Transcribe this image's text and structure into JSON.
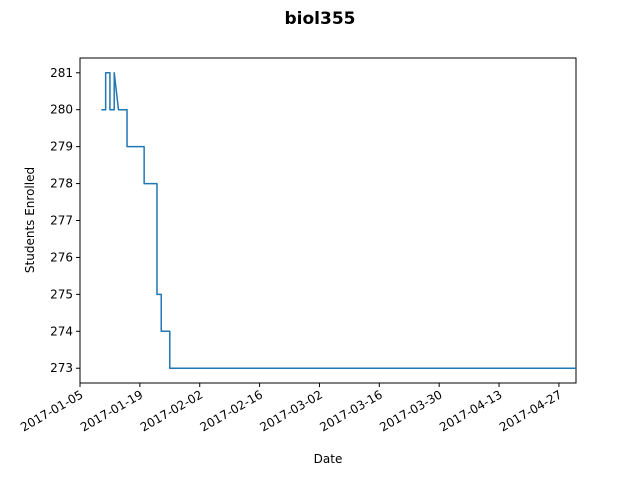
{
  "chart_data": {
    "type": "line",
    "title": "biol355",
    "xlabel": "Date",
    "ylabel": "Students Enrolled",
    "x_tick_labels": [
      "2017-01-05",
      "2017-01-19",
      "2017-02-02",
      "2017-02-16",
      "2017-03-02",
      "2017-03-16",
      "2017-03-30",
      "2017-04-13",
      "2017-04-27"
    ],
    "y_tick_labels": [
      "273",
      "274",
      "275",
      "276",
      "277",
      "278",
      "279",
      "280",
      "281"
    ],
    "xlim": [
      "2017-01-05",
      "2017-05-01"
    ],
    "ylim": [
      272.6,
      281.4
    ],
    "grid": false,
    "colors": {
      "line": "#1f77b4"
    },
    "series": [
      {
        "x": [
          "2017-01-10",
          "2017-01-11",
          "2017-01-11",
          "2017-01-12",
          "2017-01-12",
          "2017-01-13",
          "2017-01-13",
          "2017-01-14",
          "2017-01-16",
          "2017-01-16",
          "2017-01-20",
          "2017-01-20",
          "2017-01-23",
          "2017-01-23",
          "2017-01-24",
          "2017-01-24",
          "2017-01-26",
          "2017-01-26",
          "2017-01-26",
          "2017-05-01"
        ],
        "y": [
          280,
          280,
          281,
          281,
          280,
          280,
          281,
          280,
          280,
          279,
          279,
          278,
          278,
          275,
          275,
          274,
          274,
          273,
          273,
          273
        ]
      }
    ]
  }
}
